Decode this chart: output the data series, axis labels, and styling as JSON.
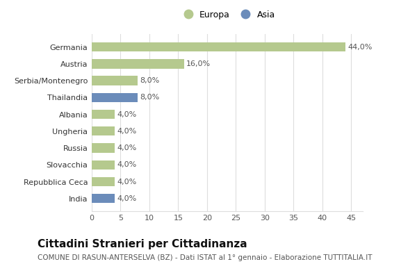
{
  "categories": [
    "India",
    "Repubblica Ceca",
    "Slovacchia",
    "Russia",
    "Ungheria",
    "Albania",
    "Thailandia",
    "Serbia/Montenegro",
    "Austria",
    "Germania"
  ],
  "values": [
    4.0,
    4.0,
    4.0,
    4.0,
    4.0,
    4.0,
    8.0,
    8.0,
    16.0,
    44.0
  ],
  "colors": [
    "#6b8cba",
    "#b5c98e",
    "#b5c98e",
    "#b5c98e",
    "#b5c98e",
    "#b5c98e",
    "#6b8cba",
    "#b5c98e",
    "#b5c98e",
    "#b5c98e"
  ],
  "labels": [
    "4,0%",
    "4,0%",
    "4,0%",
    "4,0%",
    "4,0%",
    "4,0%",
    "8,0%",
    "8,0%",
    "16,0%",
    "44,0%"
  ],
  "xlim": [
    0,
    47
  ],
  "xticks": [
    0,
    5,
    10,
    15,
    20,
    25,
    30,
    35,
    40,
    45
  ],
  "title": "Cittadini Stranieri per Cittadinanza",
  "subtitle": "COMUNE DI RASUN-ANTERSELVA (BZ) - Dati ISTAT al 1° gennaio - Elaborazione TUTTITALIA.IT",
  "legend_europa_color": "#b5c98e",
  "legend_asia_color": "#6b8cba",
  "bg_color": "#ffffff",
  "bar_height": 0.55,
  "label_fontsize": 8,
  "tick_fontsize": 8,
  "ytick_fontsize": 8,
  "title_fontsize": 11,
  "subtitle_fontsize": 7.5,
  "grid_color": "#dddddd",
  "text_color": "#555555",
  "ytick_color": "#333333"
}
